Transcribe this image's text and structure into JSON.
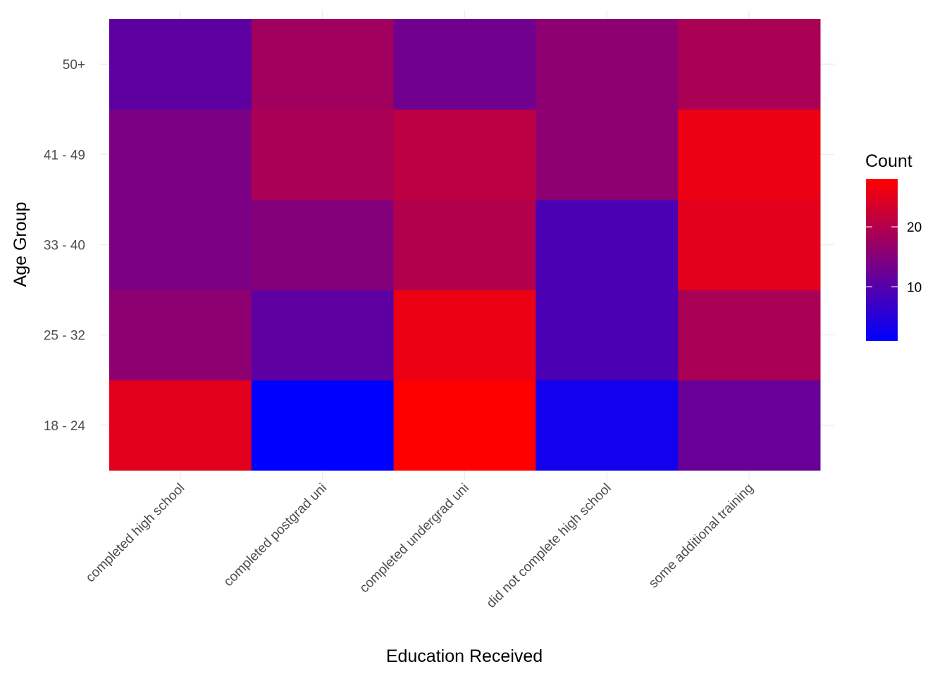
{
  "chart_data": {
    "type": "heatmap",
    "xlabel": "Education Received",
    "ylabel": "Age Group",
    "x_categories": [
      "completed high school",
      "completed postgrad uni",
      "completed undergrad uni",
      "did not complete high school",
      "some additional training"
    ],
    "y_categories": [
      "18 - 24",
      "25 - 32",
      "33 - 40",
      "41 - 49",
      "50+"
    ],
    "values": [
      [
        25,
        1,
        28,
        3,
        12
      ],
      [
        16,
        11,
        26,
        9,
        19
      ],
      [
        14,
        15,
        20,
        9,
        25
      ],
      [
        14,
        19,
        21,
        16,
        26
      ],
      [
        11,
        18,
        13,
        16,
        19
      ]
    ],
    "legend": {
      "title": "Count",
      "breaks": [
        10,
        20
      ],
      "range": [
        1,
        28
      ],
      "low_color": "#0000ff",
      "high_color": "#ff0000",
      "placement": "right"
    },
    "grid": true
  }
}
